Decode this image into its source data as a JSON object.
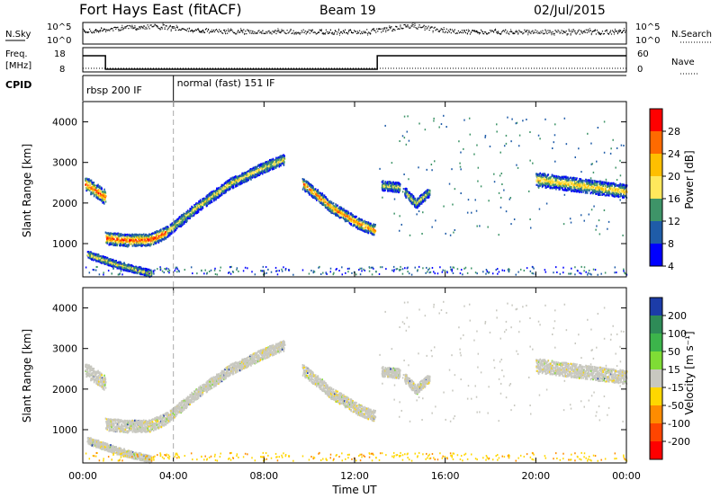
{
  "header": {
    "station": "Fort Hays East (fitACF)",
    "beam": "Beam 19",
    "date": "02/Jul/2015"
  },
  "top_panel": {
    "left_label": "N.Sky",
    "right_label": "N.Search",
    "left_ticks": [
      "10^5",
      "10^0"
    ],
    "right_ticks": [
      "10^5",
      "10^0"
    ]
  },
  "freq_panel": {
    "left_label_line1": "Freq.",
    "left_label_line2": "[MHz]",
    "right_label": "Nave",
    "left_ticks": [
      "18",
      "8"
    ],
    "right_ticks": [
      "60",
      "0"
    ]
  },
  "cpid_panel": {
    "label": "CPID",
    "segments": [
      {
        "label": "rbsp 200 IF",
        "start_hour": 0,
        "end_hour": 4
      },
      {
        "label": "normal (fast) 151 IF",
        "start_hour": 4,
        "end_hour": 24
      }
    ]
  },
  "power_panel": {
    "ylabel": "Slant Range [km]",
    "colorbar_label": "Power [dB]",
    "colorbar_ticks": [
      "28",
      "24",
      "20",
      "16",
      "12",
      "8",
      "4"
    ],
    "colorbar_colors": [
      "#ff0000",
      "#ff6a00",
      "#ffbf00",
      "#ffe85c",
      "#3e9468",
      "#1f5ca8",
      "#0000ff"
    ]
  },
  "velocity_panel": {
    "ylabel": "Slant Range [km]",
    "colorbar_label": "Velocity [m s⁻¹]",
    "colorbar_ticks": [
      "200",
      "100",
      "50",
      "15",
      "-15",
      "-50",
      "-100",
      "-200"
    ],
    "colorbar_colors": [
      "#1c3ca8",
      "#2e8b57",
      "#3cb44b",
      "#7fdc35",
      "#c8c8c0",
      "#ffd700",
      "#ff8c00",
      "#ff4500",
      "#ff0000"
    ]
  },
  "x_axis": {
    "label": "Time UT",
    "ticks": [
      "00:00",
      "04:00",
      "08:00",
      "12:00",
      "16:00",
      "20:00",
      "00:00"
    ]
  },
  "y_axis": {
    "ticks": [
      "1000",
      "2000",
      "3000",
      "4000"
    ]
  },
  "chart_data": {
    "type": "heatmap",
    "title": "Fort Hays East (fitACF)",
    "xlabel": "Time UT",
    "ylabel": "Slant Range [km]",
    "xlim": [
      0,
      24
    ],
    "ylim": [
      180,
      4500
    ],
    "frequency_MHz": [
      {
        "start": 0,
        "end": 1,
        "value": 17
      },
      {
        "start": 1,
        "end": 13,
        "value": 9.5
      },
      {
        "start": 13,
        "end": 24,
        "value": 17
      }
    ],
    "nave_level": 12,
    "power_features": [
      {
        "name": "early-band",
        "points": [
          [
            0.1,
            2500
          ],
          [
            0.5,
            2350
          ],
          [
            1.0,
            2150
          ]
        ],
        "dB": 24,
        "width": 180
      },
      {
        "name": "near-band",
        "points": [
          [
            1.0,
            1150
          ],
          [
            2.0,
            1100
          ],
          [
            3.0,
            1120
          ],
          [
            3.7,
            1300
          ]
        ],
        "dB": 26,
        "width": 150
      },
      {
        "name": "rising-arc",
        "points": [
          [
            3.7,
            1300
          ],
          [
            5.0,
            1900
          ],
          [
            6.5,
            2500
          ],
          [
            8.0,
            2900
          ],
          [
            8.9,
            3100
          ]
        ],
        "dB": 16,
        "width": 130
      },
      {
        "name": "falling-arc",
        "points": [
          [
            9.7,
            2500
          ],
          [
            11.0,
            1900
          ],
          [
            12.2,
            1500
          ],
          [
            12.9,
            1350
          ]
        ],
        "dB": 22,
        "width": 140
      },
      {
        "name": "patch-14",
        "points": [
          [
            13.2,
            2450
          ],
          [
            14.0,
            2400
          ]
        ],
        "dB": 14,
        "width": 120
      },
      {
        "name": "patch-15",
        "points": [
          [
            14.2,
            2300
          ],
          [
            14.7,
            2000
          ],
          [
            15.3,
            2300
          ]
        ],
        "dB": 14,
        "width": 110
      },
      {
        "name": "late-band",
        "points": [
          [
            20.0,
            2600
          ],
          [
            22.0,
            2450
          ],
          [
            24.0,
            2300
          ]
        ],
        "dB": 18,
        "width": 170
      },
      {
        "name": "bottom-band",
        "points": [
          [
            0.2,
            750
          ],
          [
            1.5,
            500
          ],
          [
            3.0,
            280
          ]
        ],
        "dB": 16,
        "width": 90
      }
    ],
    "velocity_classes": [
      "200",
      "100",
      "50",
      "15",
      "-15",
      "-50",
      "-100",
      "-200"
    ]
  }
}
